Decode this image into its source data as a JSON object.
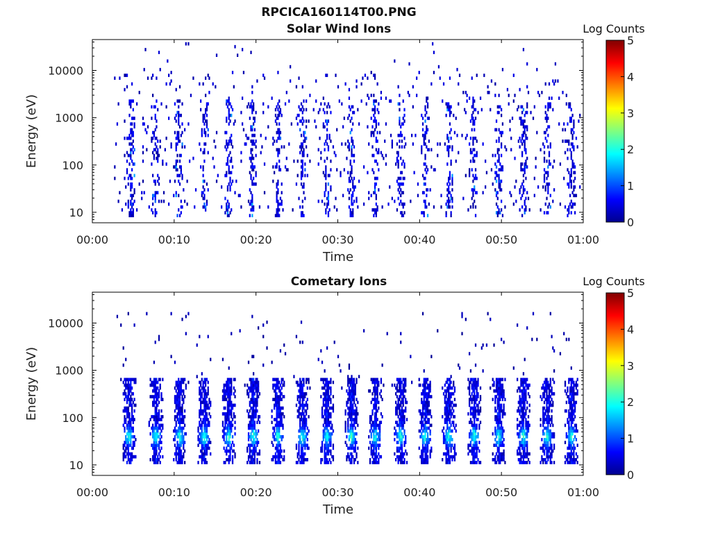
{
  "figure": {
    "main_title": "RPCICA160114T00.PNG"
  },
  "colorbar": {
    "label": "Log Counts",
    "ticks": [
      "0",
      "1",
      "2",
      "3",
      "4",
      "5"
    ],
    "range": [
      0,
      5
    ],
    "colormap": "jet"
  },
  "chart_data": [
    {
      "type": "heatmap",
      "title": "Solar Wind Ions",
      "xlabel": "Time",
      "ylabel": "Energy (eV)",
      "xlim": [
        "00:00",
        "01:00"
      ],
      "x_ticks": [
        "00:00",
        "00:10",
        "00:20",
        "00:30",
        "00:40",
        "00:50",
        "01:00"
      ],
      "y_scale": "log",
      "ylim": [
        6,
        45000
      ],
      "y_ticks": [
        10,
        100,
        1000,
        10000
      ],
      "y_tick_labels": [
        "10",
        "100",
        "1000",
        "10000"
      ],
      "colorbar_label": "Log Counts",
      "colorbar_range": [
        0,
        5
      ],
      "data_start_min": 2.5,
      "data_end_min": 59.5,
      "burst_centers_min": [
        4.6,
        7.6,
        10.5,
        13.6,
        16.6,
        19.5,
        22.6,
        25.6,
        28.6,
        31.6,
        34.5,
        37.6,
        40.6,
        43.5,
        46.5,
        49.6,
        52.6,
        55.5,
        58.5
      ],
      "typical_energy_eV": [
        8,
        30000
      ],
      "typical_log_counts": [
        0,
        1.2
      ]
    },
    {
      "type": "heatmap",
      "title": "Cometary Ions",
      "xlabel": "Time",
      "ylabel": "Energy (eV)",
      "xlim": [
        "00:00",
        "01:00"
      ],
      "x_ticks": [
        "00:00",
        "00:10",
        "00:20",
        "00:30",
        "00:40",
        "00:50",
        "01:00"
      ],
      "y_scale": "log",
      "ylim": [
        6,
        45000
      ],
      "y_ticks": [
        10,
        100,
        1000,
        10000
      ],
      "y_tick_labels": [
        "10",
        "100",
        "1000",
        "10000"
      ],
      "colorbar_label": "Log Counts",
      "colorbar_range": [
        0,
        5
      ],
      "data_start_min": 2.5,
      "data_end_min": 59.5,
      "burst_centers_min": [
        4.4,
        7.7,
        10.6,
        13.6,
        16.6,
        19.6,
        22.6,
        25.6,
        28.6,
        31.6,
        34.5,
        37.6,
        40.6,
        43.5,
        46.6,
        49.6,
        52.6,
        55.5,
        58.5
      ],
      "typical_energy_eV": [
        12,
        700
      ],
      "peak_energy_eV": 40,
      "typical_log_counts": [
        0,
        1.8
      ]
    }
  ]
}
